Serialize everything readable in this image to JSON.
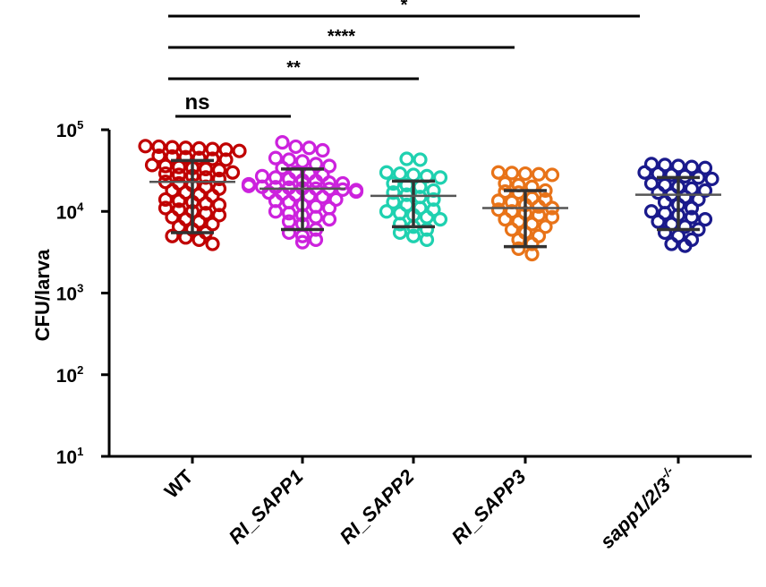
{
  "chart_data": {
    "type": "scatter",
    "title": "",
    "xlabel": "",
    "ylabel": "CFU/larva",
    "y_scale": "log",
    "ylim": [
      10,
      100000
    ],
    "y_ticks": [
      {
        "base": "10",
        "exp": "5"
      },
      {
        "base": "10",
        "exp": "4"
      },
      {
        "base": "10",
        "exp": "3"
      },
      {
        "base": "10",
        "exp": "2"
      },
      {
        "base": "10",
        "exp": "1"
      }
    ],
    "categories": [
      {
        "label": "WT",
        "italic": false,
        "sup": ""
      },
      {
        "label": "RI_SAPP1",
        "italic": true,
        "sup": ""
      },
      {
        "label": "RI_SAPP2",
        "italic": true,
        "sup": ""
      },
      {
        "label": "RI_SAPP3",
        "italic": true,
        "sup": ""
      },
      {
        "label": "sapp1/2/3",
        "italic": true,
        "sup": "-/-"
      }
    ],
    "series": [
      {
        "color": "#c00000",
        "mean": 23000,
        "sd_low": 5500,
        "sd_high": 42000,
        "points": [
          60000,
          62000,
          58000,
          63000,
          55000,
          57000,
          61000,
          59000,
          45000,
          47000,
          43000,
          48000,
          46000,
          44000,
          35000,
          36000,
          33000,
          34000,
          37000,
          32000,
          28000,
          27000,
          29000,
          26000,
          30000,
          25000,
          22000,
          21000,
          20000,
          23000,
          19000,
          18000,
          17000,
          16000,
          15500,
          14000,
          13500,
          13000,
          12500,
          12000,
          11000,
          10500,
          10000,
          9500,
          9000,
          8500,
          8000,
          7500,
          7000,
          6500,
          6000,
          5500,
          5000,
          4800,
          4500,
          4000
        ]
      },
      {
        "color": "#cc22dd",
        "mean": 19000,
        "sd_low": 6000,
        "sd_high": 33000,
        "points": [
          70000,
          62000,
          60000,
          56000,
          45000,
          43000,
          41000,
          38000,
          36000,
          34000,
          30000,
          29000,
          28000,
          27000,
          26000,
          25000,
          24000,
          23500,
          22500,
          22000,
          21500,
          21000,
          20500,
          20000,
          19800,
          19500,
          19200,
          19000,
          18800,
          18500,
          18200,
          18000,
          17500,
          17000,
          16500,
          16000,
          15500,
          15000,
          14000,
          13500,
          13000,
          12000,
          11500,
          11000,
          10000,
          9500,
          9000,
          8500,
          8000,
          7500,
          7000,
          6000,
          5500,
          5000,
          4500,
          4200
        ]
      },
      {
        "color": "#1fd1b0",
        "mean": 15500,
        "sd_low": 6500,
        "sd_high": 23500,
        "points": [
          44000,
          43000,
          30000,
          29000,
          28000,
          27000,
          26000,
          22000,
          21000,
          20000,
          18000,
          17000,
          16000,
          15000,
          14000,
          13000,
          12000,
          11000,
          10500,
          10000,
          9500,
          9000,
          8500,
          8000,
          7000,
          6500,
          6000,
          5500,
          5000,
          4500
        ]
      },
      {
        "color": "#e87318",
        "mean": 11000,
        "sd_low": 3700,
        "sd_high": 18000,
        "points": [
          30000,
          29500,
          29000,
          28500,
          28000,
          22000,
          21000,
          20000,
          18000,
          17500,
          17000,
          14500,
          14000,
          13500,
          13000,
          12000,
          11500,
          11000,
          10500,
          10000,
          9500,
          9000,
          8500,
          8000,
          7500,
          7000,
          6500,
          6000,
          5500,
          5000,
          4500,
          4000,
          3500,
          3000
        ]
      },
      {
        "color": "#1a1a8c",
        "mean": 16000,
        "sd_low": 6000,
        "sd_high": 26000,
        "points": [
          38000,
          37000,
          36000,
          35000,
          34000,
          30000,
          29000,
          28000,
          27000,
          26000,
          25000,
          22000,
          21000,
          20000,
          19000,
          18000,
          17000,
          16000,
          15000,
          14000,
          13000,
          12000,
          11000,
          10000,
          9500,
          9000,
          8500,
          8000,
          7500,
          7000,
          6500,
          6000,
          5500,
          5000,
          4500,
          4000,
          3800
        ]
      }
    ],
    "comparisons": [
      {
        "from": 0,
        "to": 1,
        "label": "ns"
      },
      {
        "from": 0,
        "to": 2,
        "label": "**"
      },
      {
        "from": 0,
        "to": 3,
        "label": "****"
      },
      {
        "from": 0,
        "to": 4,
        "label": "*"
      }
    ]
  }
}
